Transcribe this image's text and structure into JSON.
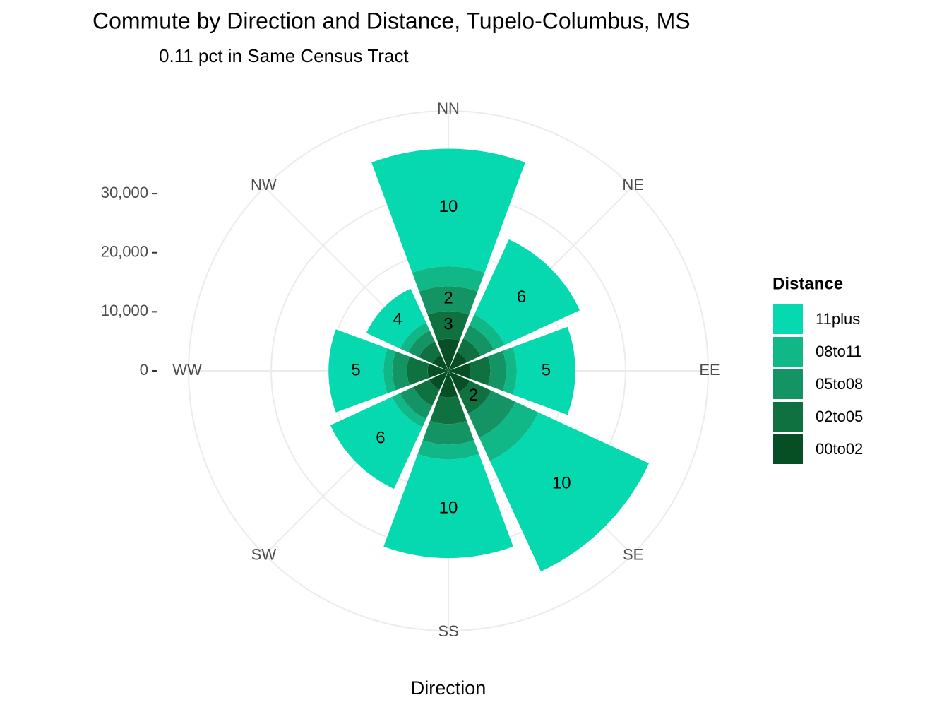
{
  "chart_data": {
    "type": "polar_stacked_bar",
    "title": "Commute by Direction and Distance, Tupelo-Columbus, MS",
    "subtitle": "0.11 pct in Same Census Tract",
    "x_label": "Direction",
    "legend_title": "Distance",
    "categories": [
      "NN",
      "NE",
      "EE",
      "SE",
      "SS",
      "SW",
      "WW",
      "NW"
    ],
    "series": [
      {
        "name": "11plus",
        "color": "#06d9b0",
        "values": [
          19900,
          14000,
          9900,
          20600,
          16700,
          11500,
          9300,
          6300
        ],
        "bar_labels": [
          "10",
          "6",
          "5",
          "10",
          "10",
          "6",
          "5",
          "4"
        ]
      },
      {
        "name": "08to11",
        "color": "#10b887",
        "values": [
          3400,
          2000,
          1800,
          4300,
          2500,
          1500,
          1500,
          1500
        ],
        "bar_labels": [
          null,
          null,
          null,
          null,
          null,
          null,
          null,
          null
        ]
      },
      {
        "name": "05to08",
        "color": "#149465",
        "values": [
          4200,
          2500,
          2700,
          4500,
          3500,
          2500,
          2500,
          2000
        ],
        "bar_labels": [
          "2",
          null,
          null,
          null,
          null,
          null,
          null,
          null
        ]
      },
      {
        "name": "02to05",
        "color": "#0f7040",
        "values": [
          4700,
          2500,
          3300,
          4000,
          4500,
          3000,
          3500,
          2500
        ],
        "bar_labels": [
          "3",
          null,
          null,
          "2",
          null,
          null,
          null,
          null
        ]
      },
      {
        "name": "00to02",
        "color": "#064f25",
        "values": [
          5400,
          3500,
          3800,
          4000,
          4500,
          3500,
          3500,
          3000
        ],
        "bar_labels": [
          null,
          null,
          null,
          null,
          null,
          null,
          null,
          null
        ]
      }
    ],
    "ylim": [
      0,
      44000
    ],
    "yticks": [
      0,
      {
        "value": 10000,
        "label": "10,000"
      },
      {
        "value": 20000,
        "label": "20,000"
      },
      {
        "value": 30000,
        "label": "30,000"
      }
    ],
    "grid": true
  }
}
